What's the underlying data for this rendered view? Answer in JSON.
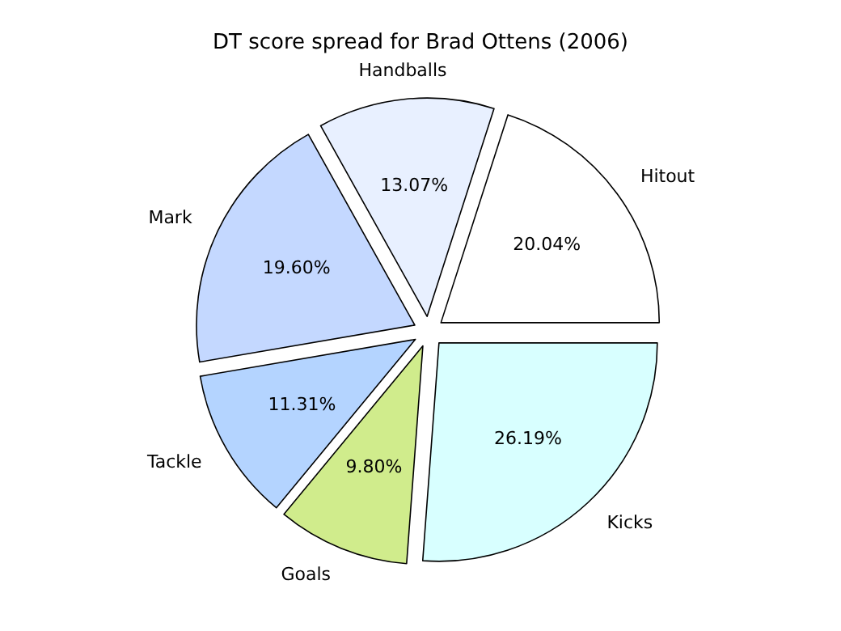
{
  "chart_data": {
    "type": "pie",
    "title": "DT score spread for Brad Ottens (2006)",
    "categories": [
      "Hitout",
      "Handballs",
      "Mark",
      "Tackle",
      "Goals",
      "Kicks"
    ],
    "values": [
      20.04,
      13.07,
      19.6,
      11.31,
      9.8,
      26.19
    ],
    "colors": [
      "#ffffff",
      "#e8f0ff",
      "#c4d8ff",
      "#b4d4ff",
      "#d0ec8c",
      "#d8ffff"
    ],
    "value_labels": [
      "20.04%",
      "13.07%",
      "19.60%",
      "11.31%",
      "9.80%",
      "26.19%"
    ]
  }
}
